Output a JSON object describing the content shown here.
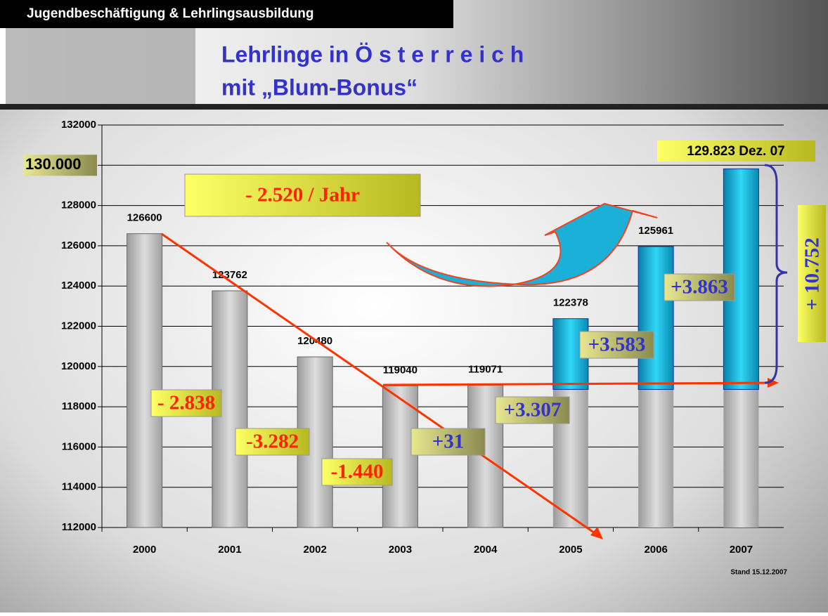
{
  "header": {
    "section": "Jugendbeschäftigung & Lehrlingsausbildung",
    "title_line1": "Lehrlinge in Ö s t e r r e i c h",
    "title_line2": "mit „Blum-Bonus“"
  },
  "chart_data": {
    "type": "bar",
    "categories": [
      "2000",
      "2001",
      "2002",
      "2003",
      "2004",
      "2005",
      "2006",
      "2007"
    ],
    "values": [
      126600,
      123762,
      120480,
      119040,
      119071,
      122378,
      125961,
      129823
    ],
    "value_labels": [
      "126600",
      "123762",
      "120480",
      "119040",
      "119071",
      "122378",
      "125961",
      "129.823 Dez. 07"
    ],
    "color": "#c0c0c0",
    "growth_color": "#1ab8dc",
    "ylim": [
      112000,
      132000
    ],
    "yticks": [
      112000,
      114000,
      116000,
      118000,
      120000,
      122000,
      124000,
      126000,
      128000,
      130000,
      132000
    ],
    "highlight_tick": {
      "value": 130000,
      "label": "130.000"
    },
    "grid": true,
    "annotations": {
      "trend": "- 2.520 / Jahr",
      "d2001": "- 2.838",
      "d2002": "-3.282",
      "d2003": "-1.440",
      "d2004": "+31",
      "d2005": "+3.307",
      "d2006": "+3.583",
      "d2007": "+3.863",
      "total": "+ 10.752"
    },
    "note": "Stand 15.12.2007"
  }
}
